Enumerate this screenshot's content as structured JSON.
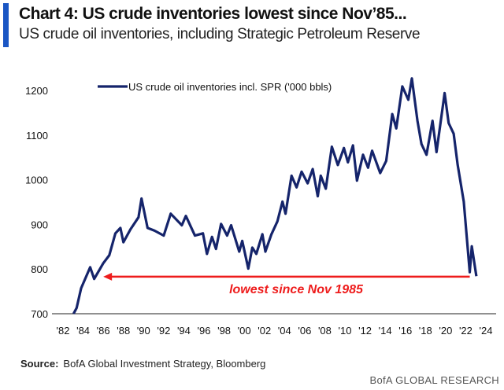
{
  "header": {
    "title": "Chart 4: US crude inventories lowest since Nov’85...",
    "subtitle": "US crude oil inventories, including Strategic Petroleum Reserve"
  },
  "footer": {
    "source_label": "Source:",
    "source_text": "BofA Global Investment Strategy, Bloomberg",
    "brand": "BofA GLOBAL RESEARCH"
  },
  "colors": {
    "accent_bar": "#1a56c4",
    "series": "#15246b",
    "annotation": "#ee1c1c"
  },
  "chart_data": {
    "type": "line",
    "title": "",
    "xlabel": "",
    "ylabel": "",
    "xlim": [
      1982,
      2024
    ],
    "ylim": [
      700,
      1200
    ],
    "grid": false,
    "legend": "top-left",
    "y_ticks": [
      "700",
      "800",
      "900",
      "1000",
      "1100",
      "1200"
    ],
    "x_ticks": [
      "'82",
      "'84",
      "'86",
      "'88",
      "'90",
      "'92",
      "'94",
      "'96",
      "'98",
      "'00",
      "'02",
      "'04",
      "'06",
      "'08",
      "'10",
      "'12",
      "'14",
      "'16",
      "'18",
      "'20",
      "'22",
      "'24"
    ],
    "series": [
      {
        "name": "US crude oil inventories incl. SPR ('000 bbls)",
        "x": [
          1983.05,
          1983.35,
          1983.8,
          1984.7,
          1985.1,
          1986.0,
          1986.6,
          1987.2,
          1987.7,
          1988.0,
          1988.7,
          1989.5,
          1989.8,
          1990.4,
          1991.1,
          1992.0,
          1992.7,
          1993.8,
          1994.2,
          1995.1,
          1995.9,
          1996.3,
          1996.8,
          1997.2,
          1997.7,
          1998.3,
          1998.7,
          1999.5,
          1999.8,
          2000.4,
          2000.8,
          2001.2,
          2001.8,
          2002.1,
          2002.7,
          2003.3,
          2003.8,
          2004.1,
          2004.7,
          2005.2,
          2005.7,
          2006.3,
          2006.8,
          2007.3,
          2007.6,
          2008.1,
          2008.7,
          2009.3,
          2009.9,
          2010.3,
          2010.8,
          2011.2,
          2011.8,
          2012.3,
          2012.7,
          2013.5,
          2014.1,
          2014.7,
          2015.1,
          2015.7,
          2016.3,
          2016.65,
          2017.2,
          2017.6,
          2018.1,
          2018.7,
          2019.1,
          2019.9,
          2020.3,
          2020.8,
          2021.2,
          2021.8,
          2022.4,
          2022.6,
          2023.05
        ],
        "values": [
          700,
          713,
          757,
          804,
          778,
          813,
          831,
          880,
          892,
          860,
          889,
          916,
          958,
          892,
          886,
          875,
          924,
          898,
          919,
          875,
          880,
          834,
          872,
          845,
          901,
          875,
          898,
          839,
          863,
          801,
          848,
          834,
          878,
          839,
          878,
          907,
          951,
          924,
          1009,
          983,
          1018,
          992,
          1024,
          963,
          1009,
          980,
          1074,
          1033,
          1071,
          1039,
          1077,
          998,
          1056,
          1027,
          1065,
          1015,
          1042,
          1147,
          1115,
          1209,
          1179,
          1227,
          1132,
          1080,
          1056,
          1132,
          1062,
          1194,
          1127,
          1103,
          1033,
          951,
          793,
          851,
          784
        ]
      }
    ],
    "annotations": [
      {
        "text": "lowest since Nov 1985",
        "arrow_level": 783,
        "arrow_from": 2022.4,
        "arrow_to": 1986.0
      }
    ]
  }
}
